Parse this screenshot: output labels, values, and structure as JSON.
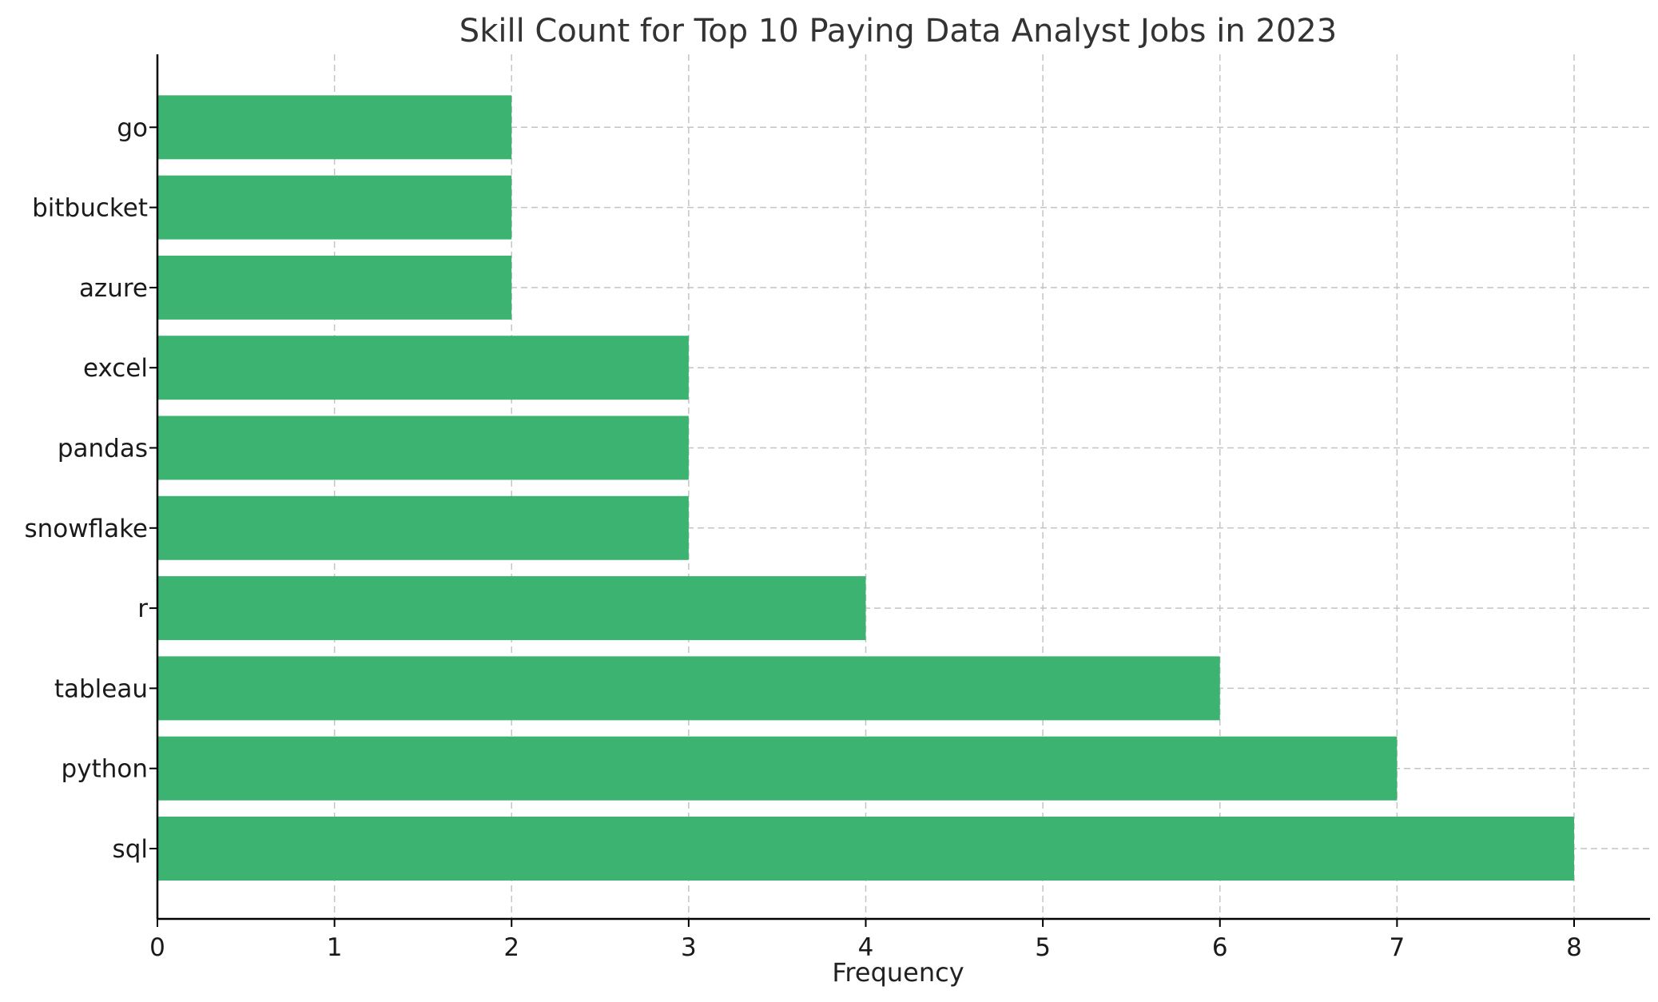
{
  "chart_data": {
    "type": "bar",
    "orientation": "horizontal",
    "title": "Skill Count for Top 10 Paying Data Analyst Jobs in 2023",
    "xlabel": "Frequency",
    "ylabel": "",
    "categories": [
      "sql",
      "python",
      "tableau",
      "r",
      "snowflake",
      "pandas",
      "excel",
      "azure",
      "bitbucket",
      "go"
    ],
    "values": [
      8,
      7,
      6,
      4,
      3,
      3,
      3,
      2,
      2,
      2
    ],
    "xlim": [
      0,
      8.4
    ],
    "xticks": [
      "0",
      "1",
      "2",
      "3",
      "4",
      "5",
      "6",
      "7",
      "8"
    ],
    "bar_color": "#3cb371",
    "grid": true,
    "category_order": "bottom-to-top"
  }
}
